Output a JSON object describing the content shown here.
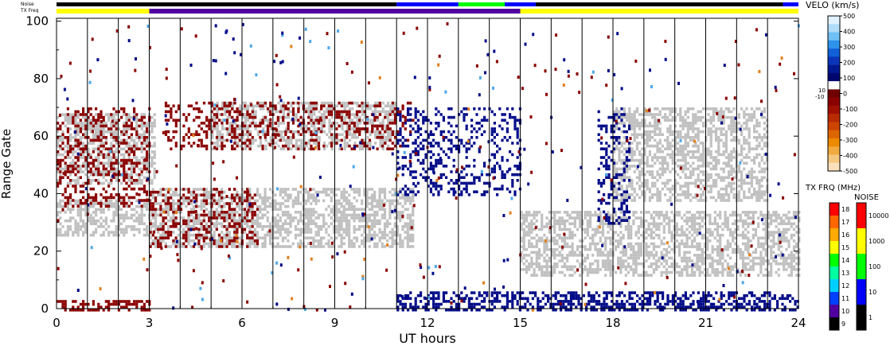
{
  "chart_data": {
    "type": "heatmap",
    "xlabel": "UT hours",
    "ylabel": "Range Gate",
    "xlim": [
      0,
      24
    ],
    "ylim": [
      0,
      101
    ],
    "x_ticks": [
      "0",
      "3",
      "6",
      "9",
      "12",
      "15",
      "18",
      "21",
      "24"
    ],
    "y_ticks": [
      "0",
      "20",
      "40",
      "60",
      "80",
      "100"
    ],
    "x_tick_values": [
      0,
      3,
      6,
      9,
      12,
      15,
      18,
      21,
      24
    ],
    "y_tick_values": [
      0,
      20,
      40,
      60,
      80,
      100
    ],
    "scan_boundaries_ut": [
      1,
      2,
      3,
      4,
      5,
      6,
      7,
      8,
      9,
      10,
      11,
      12,
      13,
      14,
      15,
      16,
      17,
      18,
      19,
      20,
      21,
      22,
      23
    ],
    "top_bars": {
      "noise_label": "Noise",
      "txfreq_label": "TX Freq",
      "txfreq_segments": [
        {
          "start": 0,
          "end": 3,
          "freq_mhz": 15
        },
        {
          "start": 3,
          "end": 15,
          "freq_mhz": 10
        },
        {
          "start": 15,
          "end": 24,
          "freq_mhz": 15
        }
      ],
      "noise_segments": [
        {
          "start": 0,
          "end": 11,
          "noise": 3
        },
        {
          "start": 11,
          "end": 13,
          "noise": 30
        },
        {
          "start": 13,
          "end": 14.5,
          "noise": 300
        },
        {
          "start": 14.5,
          "end": 15.5,
          "noise": 30
        },
        {
          "start": 15.5,
          "end": 23.5,
          "noise": 3
        },
        {
          "start": 23.5,
          "end": 24,
          "noise": 30
        }
      ]
    },
    "scatter_bands": [
      {
        "name": "ground-upper-early",
        "t0": 0,
        "t1": 3.2,
        "r0": 44,
        "r1": 68,
        "kind": "gray"
      },
      {
        "name": "ground-lower-early",
        "t0": 0,
        "t1": 3,
        "r0": 26,
        "r1": 38,
        "kind": "gray"
      },
      {
        "name": "ground-lower-mid",
        "t0": 3,
        "t1": 11.5,
        "r0": 22,
        "r1": 42,
        "kind": "gray"
      },
      {
        "name": "ground-upper-mid",
        "t0": 5,
        "t1": 11,
        "r0": 56,
        "r1": 72,
        "kind": "gray"
      },
      {
        "name": "ground-late-low",
        "t0": 15,
        "t1": 24,
        "r0": 12,
        "r1": 34,
        "kind": "gray"
      },
      {
        "name": "ground-late-high",
        "t0": 18,
        "t1": 23,
        "r0": 38,
        "r1": 70,
        "kind": "gray"
      },
      {
        "name": "neg-vel-lower",
        "t0": 3,
        "t1": 6.5,
        "r0": 22,
        "r1": 42,
        "kind": "neg"
      },
      {
        "name": "neg-vel-upper",
        "t0": 3.5,
        "t1": 11.5,
        "r0": 56,
        "r1": 72,
        "kind": "neg"
      },
      {
        "name": "neg-vel-early",
        "t0": 0,
        "t1": 3,
        "r0": 36,
        "r1": 70,
        "kind": "neg"
      },
      {
        "name": "pos-vel-noon",
        "t0": 11,
        "t1": 15,
        "r0": 40,
        "r1": 70,
        "kind": "pos"
      },
      {
        "name": "pos-vel-near",
        "t0": 11,
        "t1": 24,
        "r0": 0,
        "r1": 6,
        "kind": "pos"
      },
      {
        "name": "pos-vel-18",
        "t0": 17.5,
        "t1": 18.5,
        "r0": 30,
        "r1": 70,
        "kind": "pos"
      },
      {
        "name": "neg-vel-near-early",
        "t0": 0,
        "t1": 3,
        "r0": 0,
        "r1": 3,
        "kind": "neg"
      }
    ],
    "velocity_scale": {
      "title": "VELO (km/s)",
      "ticks": [
        "500",
        "400",
        "300",
        "200",
        "100",
        "0",
        "-100",
        "-200",
        "-300",
        "-400",
        "-500"
      ],
      "ticks_small": [
        "10",
        "-10"
      ],
      "colors": [
        "#e0f2ff",
        "#b0dcfa",
        "#6ec0f5",
        "#2c92ea",
        "#1260d8",
        "#0a35b8",
        "#001890",
        "#000870",
        "#ffffff",
        "#700000",
        "#8a0000",
        "#a01000",
        "#b82a00",
        "#cc4400",
        "#de6600",
        "#ec8a00",
        "#f0aa40",
        "#f5c880",
        "#f9e0bb"
      ]
    },
    "txfreq_scale": {
      "title": "TX FRQ (MHz)",
      "ticks": [
        "18",
        "17",
        "16",
        "15",
        "14",
        "13",
        "12",
        "11",
        "10",
        "9"
      ],
      "colors": [
        "#ff0000",
        "#ff6600",
        "#ffaa00",
        "#ffff00",
        "#00ff00",
        "#00ffa0",
        "#00d0ff",
        "#0040ff",
        "#5000a0",
        "#000000"
      ]
    },
    "noise_scale": {
      "title": "NOISE",
      "ticks": [
        "10000",
        "1000",
        "100",
        "10",
        "1"
      ],
      "colors": [
        "#ff0000",
        "#ffff00",
        "#00ff00",
        "#0000ff",
        "#000000"
      ]
    },
    "colors": {
      "ground_scatter": "#c0c0c0",
      "negative_velocity": "#8b0000",
      "positive_velocity": "#000a88",
      "light_blue": "#4fa8e8",
      "orange": "#e08020"
    }
  }
}
